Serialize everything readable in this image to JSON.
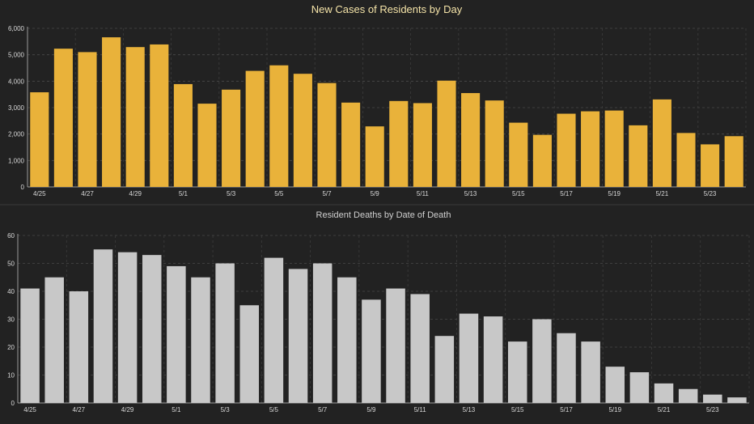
{
  "charts": [
    {
      "type": "bar",
      "title": "New Cases of Residents by Day",
      "title_color": "#f4e3a8",
      "bar_color": "#e9b23a",
      "ylim": [
        0,
        6000
      ],
      "yticks": [
        "0",
        "1,000",
        "2,000",
        "3,000",
        "4,000",
        "5,000",
        "6,000"
      ],
      "ytick_values": [
        0,
        1000,
        2000,
        3000,
        4000,
        5000,
        6000
      ],
      "categories": [
        "4/25",
        "4/26",
        "4/27",
        "4/28",
        "4/29",
        "4/30",
        "5/1",
        "5/2",
        "5/3",
        "5/4",
        "5/5",
        "5/6",
        "5/7",
        "5/8",
        "5/9",
        "5/10",
        "5/11",
        "5/12",
        "5/13",
        "5/14",
        "5/15",
        "5/16",
        "5/17",
        "5/18",
        "5/19",
        "5/20",
        "5/21",
        "5/22",
        "5/23",
        "5/24"
      ],
      "xtick_labels": [
        "4/25",
        "",
        "4/27",
        "",
        "4/29",
        "",
        "5/1",
        "",
        "5/3",
        "",
        "5/5",
        "",
        "5/7",
        "",
        "5/9",
        "",
        "5/11",
        "",
        "5/13",
        "",
        "5/15",
        "",
        "5/17",
        "",
        "5/19",
        "",
        "5/21",
        "",
        "5/23",
        ""
      ],
      "values": [
        3580,
        5230,
        5100,
        5660,
        5290,
        5390,
        3890,
        3150,
        3680,
        4390,
        4600,
        4280,
        3930,
        3190,
        2290,
        3250,
        3170,
        4020,
        3550,
        3270,
        2430,
        1970,
        2770,
        2860,
        2890,
        2330,
        3310,
        2040,
        1610,
        1920
      ]
    },
    {
      "type": "bar",
      "title": "Resident Deaths by Date of Death",
      "title_color": "#d0d0d0",
      "bar_color": "#c8c8c8",
      "ylim": [
        0,
        60
      ],
      "yticks": [
        "0",
        "10",
        "20",
        "30",
        "40",
        "50",
        "60"
      ],
      "ytick_values": [
        0,
        10,
        20,
        30,
        40,
        50,
        60
      ],
      "categories": [
        "4/25",
        "4/26",
        "4/27",
        "4/28",
        "4/29",
        "4/30",
        "5/1",
        "5/2",
        "5/3",
        "5/4",
        "5/5",
        "5/6",
        "5/7",
        "5/8",
        "5/9",
        "5/10",
        "5/11",
        "5/12",
        "5/13",
        "5/14",
        "5/15",
        "5/16",
        "5/17",
        "5/18",
        "5/19",
        "5/20",
        "5/21",
        "5/22",
        "5/23",
        "5/24"
      ],
      "xtick_labels": [
        "4/25",
        "",
        "4/27",
        "",
        "4/29",
        "",
        "5/1",
        "",
        "5/3",
        "",
        "5/5",
        "",
        "5/7",
        "",
        "5/9",
        "",
        "5/11",
        "",
        "5/13",
        "",
        "5/15",
        "",
        "5/17",
        "",
        "5/19",
        "",
        "5/21",
        "",
        "5/23",
        ""
      ],
      "values": [
        41,
        45,
        40,
        55,
        54,
        53,
        49,
        45,
        50,
        35,
        52,
        48,
        50,
        45,
        37,
        41,
        39,
        24,
        32,
        31,
        22,
        30,
        25,
        22,
        13,
        11,
        7,
        5,
        3,
        2
      ]
    }
  ]
}
